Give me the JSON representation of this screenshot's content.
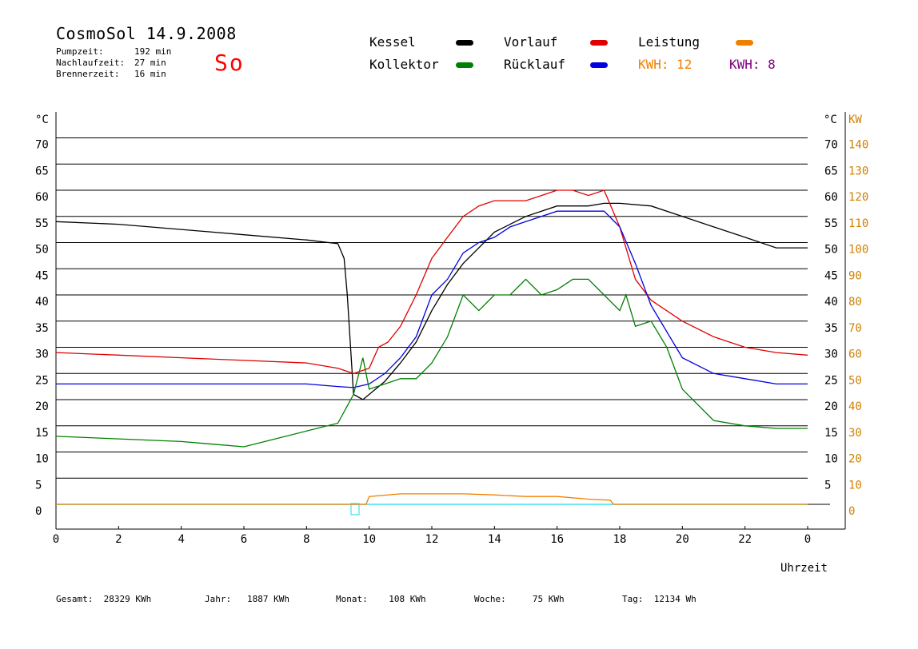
{
  "header": {
    "title": "CosmoSol 14.9.2008",
    "day": "So",
    "stats": [
      {
        "label": "Pumpzeit:",
        "value": "192 min"
      },
      {
        "label": "Nachlaufzeit:",
        "value": "27 min"
      },
      {
        "label": "Brennerzeit:",
        "value": "16 min"
      }
    ]
  },
  "legend": {
    "items": [
      {
        "label": "Kessel",
        "color": "#000000"
      },
      {
        "label": "Vorlauf",
        "color": "#e00000"
      },
      {
        "label": "Leistung",
        "color": "#f08000"
      },
      {
        "label": "Kollektor",
        "color": "#008000"
      },
      {
        "label": "Rücklauf",
        "color": "#0000e0"
      }
    ],
    "kwh_orange": "KWH: 12",
    "kwh_purple": "KWH: 8"
  },
  "footer": {
    "gesamt": "Gesamt:  28329 KWh",
    "jahr": "Jahr:   1887 KWh",
    "monat": "Monat:    108 KWh",
    "woche": "Woche:     75 KWh",
    "tag": "Tag:  12134 Wh"
  },
  "chart_data": {
    "type": "line",
    "xlabel": "Uhrzeit",
    "ylabel_left": "°C",
    "ylabel_right_1": "°C",
    "ylabel_right_2": "KW",
    "xlim": [
      0,
      24
    ],
    "ylim": [
      -5,
      75
    ],
    "x_ticks": [
      "0",
      "2",
      "4",
      "6",
      "8",
      "10",
      "12",
      "14",
      "16",
      "18",
      "20",
      "22",
      "0"
    ],
    "y_ticks_left": [
      0,
      5,
      10,
      15,
      20,
      25,
      30,
      35,
      40,
      45,
      50,
      55,
      60,
      65,
      70
    ],
    "y_ticks_right_temp": [
      5,
      10,
      15,
      20,
      25,
      30,
      35,
      40,
      45,
      50,
      55,
      60,
      65,
      70
    ],
    "y_ticks_right_kw": [
      0,
      10,
      20,
      30,
      40,
      50,
      60,
      70,
      80,
      90,
      100,
      110,
      120,
      130,
      140
    ],
    "grid": true,
    "series": [
      {
        "name": "Kessel",
        "color": "#000000",
        "x": [
          0,
          2,
          4,
          6,
          8,
          9,
          9.2,
          9.3,
          9.5,
          9.8,
          10,
          10.5,
          11,
          11.5,
          12,
          12.5,
          13,
          13.5,
          14,
          14.5,
          15,
          15.5,
          16,
          16.5,
          17,
          17.5,
          18,
          19,
          20,
          21,
          22,
          23,
          24
        ],
        "y": [
          54,
          53.5,
          52.5,
          51.5,
          50.5,
          49.8,
          47,
          40,
          21,
          20,
          21,
          23.5,
          27,
          31,
          37,
          42,
          46,
          49,
          52,
          53.5,
          55,
          56,
          57,
          57,
          57,
          57.5,
          57.5,
          57,
          55,
          53,
          51,
          49,
          49
        ]
      },
      {
        "name": "Vorlauf",
        "color": "#e00000",
        "x": [
          0,
          2,
          4,
          6,
          8,
          9,
          9.5,
          10,
          10.3,
          10.6,
          11,
          11.5,
          12,
          12.5,
          13,
          13.5,
          14,
          14.5,
          15,
          15.5,
          16,
          16.5,
          17,
          17.5,
          18,
          18.5,
          19,
          20,
          21,
          22,
          23,
          24
        ],
        "y": [
          29,
          28.5,
          28,
          27.5,
          27,
          26,
          25,
          26,
          30,
          31,
          34,
          40,
          47,
          51,
          55,
          57,
          58,
          58,
          58,
          59,
          60,
          60,
          59,
          60,
          53,
          43,
          39,
          35,
          32,
          30,
          29,
          28.5
        ]
      },
      {
        "name": "Rücklauf",
        "color": "#0000e0",
        "x": [
          0,
          2,
          4,
          6,
          8,
          9,
          9.5,
          10,
          10.5,
          11,
          11.5,
          12,
          12.5,
          13,
          13.5,
          14,
          14.5,
          15,
          15.5,
          16,
          16.5,
          17,
          17.5,
          18,
          18.5,
          19,
          20,
          21,
          22,
          23,
          24
        ],
        "y": [
          23,
          23,
          23,
          23,
          23,
          22.5,
          22.3,
          23,
          25,
          28,
          32,
          40,
          43,
          48,
          50,
          51,
          53,
          54,
          55,
          56,
          56,
          56,
          56,
          53,
          46,
          38,
          28,
          25,
          24,
          23,
          23
        ]
      },
      {
        "name": "Kollektor",
        "color": "#008000",
        "x": [
          0,
          2,
          4,
          5,
          6,
          7,
          8,
          9,
          9.5,
          9.8,
          10,
          10.5,
          11,
          11.5,
          12,
          12.5,
          13,
          13.5,
          14,
          14.5,
          15,
          15.5,
          16,
          16.5,
          17,
          17.5,
          18,
          18.2,
          18.5,
          19,
          19.5,
          20,
          21,
          22,
          23,
          24
        ],
        "y": [
          13,
          12.5,
          12,
          11.5,
          11,
          12.5,
          14,
          15.5,
          21,
          28,
          22,
          23,
          24,
          24,
          27,
          32,
          40,
          37,
          40,
          40,
          43,
          40,
          41,
          43,
          43,
          40,
          37,
          40,
          34,
          35,
          30,
          22,
          16,
          15,
          14.5,
          14.5
        ]
      },
      {
        "name": "Leistung",
        "color": "#f08000",
        "x": [
          0,
          9.9,
          10,
          11,
          12,
          13,
          14,
          15,
          16,
          17,
          17.7,
          17.8,
          24
        ],
        "y": [
          0,
          0,
          1.5,
          2,
          2,
          2,
          1.8,
          1.5,
          1.5,
          1,
          0.8,
          0,
          0
        ]
      }
    ]
  }
}
